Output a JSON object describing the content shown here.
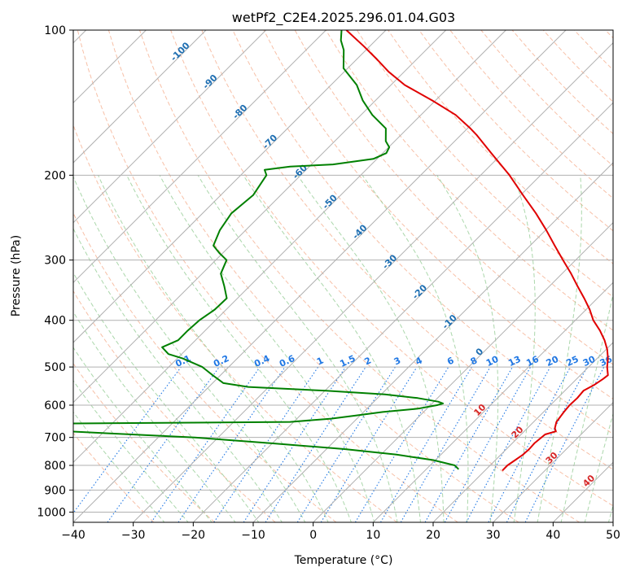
{
  "chart_data": {
    "type": "line",
    "title": "wetPf2_C2E4.2025.296.01.04.G03",
    "xlabel": "Temperature (°C)",
    "ylabel": "Pressure (hPa)",
    "xlim": [
      -40,
      50
    ],
    "ylim": [
      1050,
      100
    ],
    "y_scale": "log",
    "grid": true,
    "x_ticks": [
      -40,
      -30,
      -20,
      -10,
      0,
      10,
      20,
      30,
      40,
      50
    ],
    "x_tick_labels": [
      "−40",
      "−30",
      "−20",
      "−10",
      "0",
      "10",
      "20",
      "30",
      "40",
      "50"
    ],
    "y_ticks": [
      100,
      200,
      300,
      400,
      500,
      600,
      700,
      800,
      900,
      1000
    ],
    "y_tick_labels": [
      "100",
      "200",
      "300",
      "400",
      "500",
      "600",
      "700",
      "800",
      "900",
      "1000"
    ],
    "colors": {
      "temperature": "#e00000",
      "dewpoint": "#008000",
      "isotherm": "#b0b0b0",
      "dry_adiabat": "#f4a582",
      "moist_adiabat": "#8fc98f",
      "mixing_ratio": "#1f77e4",
      "isotherm_label": "#1f6fb2",
      "moist_label": "#d62728"
    },
    "series": [
      {
        "key": "temperature",
        "points": [
          {
            "p": 820,
            "t": 22.9
          },
          {
            "p": 800,
            "t": 22.9
          },
          {
            "p": 780,
            "t": 23.3
          },
          {
            "p": 760,
            "t": 23.7
          },
          {
            "p": 740,
            "t": 23.8
          },
          {
            "p": 720,
            "t": 23.7
          },
          {
            "p": 690,
            "t": 24.0
          },
          {
            "p": 680,
            "t": 25.3
          },
          {
            "p": 670,
            "t": 24.6
          },
          {
            "p": 650,
            "t": 23.8
          },
          {
            "p": 620,
            "t": 23.4
          },
          {
            "p": 600,
            "t": 23.2
          },
          {
            "p": 580,
            "t": 23.3
          },
          {
            "p": 560,
            "t": 23.1
          },
          {
            "p": 545,
            "t": 23.9
          },
          {
            "p": 530,
            "t": 24.4
          },
          {
            "p": 520,
            "t": 24.6
          },
          {
            "p": 500,
            "t": 23.1
          },
          {
            "p": 480,
            "t": 21.8
          },
          {
            "p": 460,
            "t": 20.2
          },
          {
            "p": 440,
            "t": 18.2
          },
          {
            "p": 420,
            "t": 15.8
          },
          {
            "p": 400,
            "t": 13.0
          },
          {
            "p": 380,
            "t": 10.6
          },
          {
            "p": 360,
            "t": 7.8
          },
          {
            "p": 340,
            "t": 4.7
          },
          {
            "p": 320,
            "t": 1.5
          },
          {
            "p": 300,
            "t": -2.1
          },
          {
            "p": 280,
            "t": -5.9
          },
          {
            "p": 260,
            "t": -9.9
          },
          {
            "p": 240,
            "t": -14.4
          },
          {
            "p": 220,
            "t": -19.6
          },
          {
            "p": 200,
            "t": -25.2
          },
          {
            "p": 180,
            "t": -31.9
          },
          {
            "p": 165,
            "t": -37.4
          },
          {
            "p": 160,
            "t": -39.5
          },
          {
            "p": 150,
            "t": -44.2
          },
          {
            "p": 140,
            "t": -50.5
          },
          {
            "p": 130,
            "t": -57.7
          },
          {
            "p": 122,
            "t": -62.6
          },
          {
            "p": 115,
            "t": -66.6
          },
          {
            "p": 108,
            "t": -71.0
          },
          {
            "p": 100,
            "t": -76.6
          }
        ]
      },
      {
        "key": "dewpoint",
        "points": [
          {
            "p": 815,
            "t": 15.4
          },
          {
            "p": 800,
            "t": 14.1
          },
          {
            "p": 780,
            "t": 9.6
          },
          {
            "p": 760,
            "t": 2.6
          },
          {
            "p": 740,
            "t": -7.0
          },
          {
            "p": 720,
            "t": -20.1
          },
          {
            "p": 700,
            "t": -33.9
          },
          {
            "p": 690,
            "t": -44.9
          },
          {
            "p": 680,
            "t": -56.1
          },
          {
            "p": 670,
            "t": -58.3
          },
          {
            "p": 655,
            "t": -58.3
          },
          {
            "p": 650,
            "t": -20.6
          },
          {
            "p": 640,
            "t": -14.3
          },
          {
            "p": 630,
            "t": -10.6
          },
          {
            "p": 620,
            "t": -6.8
          },
          {
            "p": 610,
            "t": -1.5
          },
          {
            "p": 600,
            "t": 1.1
          },
          {
            "p": 595,
            "t": 1.8
          },
          {
            "p": 590,
            "t": 0.7
          },
          {
            "p": 580,
            "t": -3.3
          },
          {
            "p": 570,
            "t": -9.4
          },
          {
            "p": 560,
            "t": -19.8
          },
          {
            "p": 550,
            "t": -33.4
          },
          {
            "p": 540,
            "t": -38.2
          },
          {
            "p": 520,
            "t": -41.3
          },
          {
            "p": 500,
            "t": -44.4
          },
          {
            "p": 480,
            "t": -49.1
          },
          {
            "p": 470,
            "t": -52.2
          },
          {
            "p": 455,
            "t": -54.4
          },
          {
            "p": 440,
            "t": -52.9
          },
          {
            "p": 420,
            "t": -52.9
          },
          {
            "p": 400,
            "t": -52.7
          },
          {
            "p": 380,
            "t": -51.9
          },
          {
            "p": 360,
            "t": -51.8
          },
          {
            "p": 340,
            "t": -54.2
          },
          {
            "p": 320,
            "t": -56.9
          },
          {
            "p": 300,
            "t": -58.2
          },
          {
            "p": 290,
            "t": -60.6
          },
          {
            "p": 280,
            "t": -62.8
          },
          {
            "p": 260,
            "t": -64.3
          },
          {
            "p": 240,
            "t": -65.2
          },
          {
            "p": 220,
            "t": -64.6
          },
          {
            "p": 200,
            "t": -65.7
          },
          {
            "p": 195,
            "t": -66.9
          },
          {
            "p": 192,
            "t": -63.2
          },
          {
            "p": 190,
            "t": -56.4
          },
          {
            "p": 185,
            "t": -50.6
          },
          {
            "p": 180,
            "t": -49.4
          },
          {
            "p": 175,
            "t": -49.9
          },
          {
            "p": 170,
            "t": -51.5
          },
          {
            "p": 160,
            "t": -53.6
          },
          {
            "p": 150,
            "t": -58.1
          },
          {
            "p": 140,
            "t": -62.1
          },
          {
            "p": 130,
            "t": -65.7
          },
          {
            "p": 120,
            "t": -70.7
          },
          {
            "p": 110,
            "t": -73.7
          },
          {
            "p": 105,
            "t": -75.8
          },
          {
            "p": 100,
            "t": -77.4
          }
        ]
      }
    ],
    "isotherm_labels": [
      "-100",
      "-90",
      "-80",
      "-70",
      "-60",
      "-50",
      "-40",
      "-30",
      "-20",
      "-10",
      "0"
    ],
    "isotherm_label_values": [
      -100,
      -90,
      -80,
      -70,
      -60,
      -50,
      -40,
      -30,
      -20,
      -10,
      0
    ],
    "mixing_ratio_labels": [
      "0.1",
      "0.2",
      "0.4",
      "0.6",
      "1",
      "1.5",
      "2",
      "3",
      "4",
      "6",
      "8",
      "10",
      "13",
      "16",
      "20",
      "25",
      "30",
      "36"
    ],
    "mixing_ratio_values": [
      0.1,
      0.2,
      0.4,
      0.6,
      1,
      1.5,
      2,
      3,
      4,
      6,
      8,
      10,
      13,
      16,
      20,
      25,
      30,
      36
    ],
    "moist_adiabat_labels": [
      "10",
      "20",
      "30",
      "40"
    ],
    "moist_adiabat_values": [
      10,
      20,
      30,
      40
    ]
  }
}
